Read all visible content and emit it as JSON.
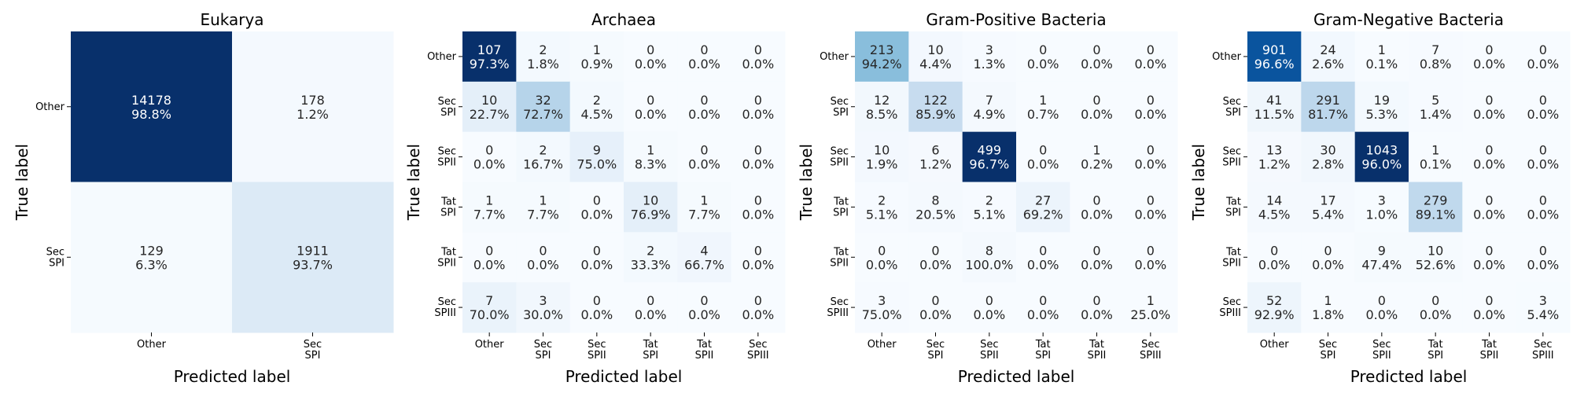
{
  "axis_labels": {
    "xlabel": "Predicted label",
    "ylabel": "True label"
  },
  "chart_data": [
    {
      "type": "heatmap",
      "title": "Eukarya",
      "xlabel": "Predicted label",
      "ylabel": "True label",
      "x_categories": [
        "Other",
        "Sec\nSPI"
      ],
      "y_categories": [
        "Other",
        "Sec\nSPI"
      ],
      "counts": [
        [
          14178,
          178
        ],
        [
          129,
          1911
        ]
      ],
      "percent": [
        "98.8%",
        "1.2%",
        "6.3%",
        "93.7%"
      ],
      "colorscale": "Blues"
    },
    {
      "type": "heatmap",
      "title": "Archaea",
      "xlabel": "Predicted label",
      "ylabel": "True label",
      "x_categories": [
        "Other",
        "Sec\nSPI",
        "Sec\nSPII",
        "Tat\nSPI",
        "Tat\nSPII",
        "Sec\nSPIII"
      ],
      "y_categories": [
        "Other",
        "Sec\nSPI",
        "Sec\nSPII",
        "Tat\nSPI",
        "Tat\nSPII",
        "Sec\nSPIII"
      ],
      "counts": [
        [
          107,
          2,
          1,
          0,
          0,
          0
        ],
        [
          10,
          32,
          2,
          0,
          0,
          0
        ],
        [
          0,
          2,
          9,
          1,
          0,
          0
        ],
        [
          1,
          1,
          0,
          10,
          1,
          0
        ],
        [
          0,
          0,
          0,
          2,
          4,
          0
        ],
        [
          7,
          3,
          0,
          0,
          0,
          0
        ]
      ],
      "percent": [
        "97.3%",
        "1.8%",
        "0.9%",
        "0.0%",
        "0.0%",
        "0.0%",
        "22.7%",
        "72.7%",
        "4.5%",
        "0.0%",
        "0.0%",
        "0.0%",
        "0.0%",
        "16.7%",
        "75.0%",
        "8.3%",
        "0.0%",
        "0.0%",
        "7.7%",
        "7.7%",
        "0.0%",
        "76.9%",
        "7.7%",
        "0.0%",
        "0.0%",
        "0.0%",
        "0.0%",
        "33.3%",
        "66.7%",
        "0.0%",
        "70.0%",
        "30.0%",
        "0.0%",
        "0.0%",
        "0.0%",
        "0.0%"
      ],
      "colorscale": "Blues"
    },
    {
      "type": "heatmap",
      "title": "Gram-Positive Bacteria",
      "xlabel": "Predicted label",
      "ylabel": "True label",
      "x_categories": [
        "Other",
        "Sec\nSPI",
        "Sec\nSPII",
        "Tat\nSPI",
        "Tat\nSPII",
        "Sec\nSPIII"
      ],
      "y_categories": [
        "Other",
        "Sec\nSPI",
        "Sec\nSPII",
        "Tat\nSPI",
        "Tat\nSPII",
        "Sec\nSPIII"
      ],
      "counts": [
        [
          213,
          10,
          3,
          0,
          0,
          0
        ],
        [
          12,
          122,
          7,
          1,
          0,
          0
        ],
        [
          10,
          6,
          499,
          0,
          1,
          0
        ],
        [
          2,
          8,
          2,
          27,
          0,
          0
        ],
        [
          0,
          0,
          8,
          0,
          0,
          0
        ],
        [
          3,
          0,
          0,
          0,
          0,
          1
        ]
      ],
      "percent": [
        "94.2%",
        "4.4%",
        "1.3%",
        "0.0%",
        "0.0%",
        "0.0%",
        "8.5%",
        "85.9%",
        "4.9%",
        "0.7%",
        "0.0%",
        "0.0%",
        "1.9%",
        "1.2%",
        "96.7%",
        "0.0%",
        "0.2%",
        "0.0%",
        "5.1%",
        "20.5%",
        "5.1%",
        "69.2%",
        "0.0%",
        "0.0%",
        "0.0%",
        "0.0%",
        "100.0%",
        "0.0%",
        "0.0%",
        "0.0%",
        "75.0%",
        "0.0%",
        "0.0%",
        "0.0%",
        "0.0%",
        "25.0%"
      ],
      "colorscale": "Blues"
    },
    {
      "type": "heatmap",
      "title": "Gram-Negative Bacteria",
      "xlabel": "Predicted label",
      "ylabel": "True label",
      "x_categories": [
        "Other",
        "Sec\nSPI",
        "Sec\nSPII",
        "Tat\nSPI",
        "Tat\nSPII",
        "Sec\nSPIII"
      ],
      "y_categories": [
        "Other",
        "Sec\nSPI",
        "Sec\nSPII",
        "Tat\nSPI",
        "Tat\nSPII",
        "Sec\nSPIII"
      ],
      "counts": [
        [
          901,
          24,
          1,
          7,
          0,
          0
        ],
        [
          41,
          291,
          19,
          5,
          0,
          0
        ],
        [
          13,
          30,
          1043,
          1,
          0,
          0
        ],
        [
          14,
          17,
          3,
          279,
          0,
          0
        ],
        [
          0,
          0,
          9,
          10,
          0,
          0
        ],
        [
          52,
          1,
          0,
          0,
          0,
          3
        ]
      ],
      "percent": [
        "96.6%",
        "2.6%",
        "0.1%",
        "0.8%",
        "0.0%",
        "0.0%",
        "11.5%",
        "81.7%",
        "5.3%",
        "1.4%",
        "0.0%",
        "0.0%",
        "1.2%",
        "2.8%",
        "96.0%",
        "0.1%",
        "0.0%",
        "0.0%",
        "4.5%",
        "5.4%",
        "1.0%",
        "89.1%",
        "0.0%",
        "0.0%",
        "0.0%",
        "0.0%",
        "47.4%",
        "52.6%",
        "0.0%",
        "0.0%",
        "92.9%",
        "1.8%",
        "0.0%",
        "0.0%",
        "0.0%",
        "5.4%"
      ],
      "colorscale": "Blues"
    }
  ]
}
